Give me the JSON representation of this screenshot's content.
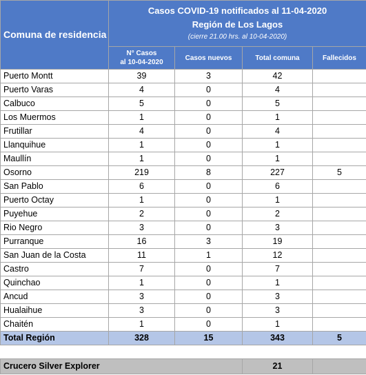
{
  "header": {
    "title": "Casos COVID-19 notificados al 11-04-2020",
    "region": "Región de Los Lagos",
    "subtitle": "(cierre 21.00 hrs. al 10-04-2020)",
    "first_column": "Comuna de residencia",
    "columns": [
      {
        "label": "N° Casos",
        "note": "al 10-04-2020"
      },
      {
        "label": "Casos nuevos"
      },
      {
        "label": "Total comuna"
      },
      {
        "label": "Fallecidos"
      }
    ]
  },
  "table": {
    "rows": [
      [
        "Puerto Montt",
        39,
        3,
        42,
        null
      ],
      [
        "Puerto Varas",
        4,
        0,
        4,
        null
      ],
      [
        "Calbuco",
        5,
        0,
        5,
        null
      ],
      [
        "Los Muermos",
        1,
        0,
        1,
        null
      ],
      [
        "Frutillar",
        4,
        0,
        4,
        null
      ],
      [
        "Llanquihue",
        1,
        0,
        1,
        null
      ],
      [
        "Maullín",
        1,
        0,
        1,
        null
      ],
      [
        "Osorno",
        219,
        8,
        227,
        5
      ],
      [
        "San Pablo",
        6,
        0,
        6,
        null
      ],
      [
        "Puerto Octay",
        1,
        0,
        1,
        null
      ],
      [
        "Puyehue",
        2,
        0,
        2,
        null
      ],
      [
        "Rio Negro",
        3,
        0,
        3,
        null
      ],
      [
        "Purranque",
        16,
        3,
        19,
        null
      ],
      [
        "San Juan de la Costa",
        11,
        1,
        12,
        null
      ],
      [
        "Castro",
        7,
        0,
        7,
        null
      ],
      [
        "Quinchao",
        1,
        0,
        1,
        null
      ],
      [
        "Ancud",
        3,
        0,
        3,
        null
      ],
      [
        "Hualaihue",
        3,
        0,
        3,
        null
      ],
      [
        "Chaitén",
        1,
        0,
        1,
        null
      ]
    ],
    "total": {
      "label": "Total Región",
      "values": [
        328,
        15,
        343,
        5
      ]
    },
    "cruise": {
      "label": "Crucero Silver Explorer",
      "total": 21
    }
  }
}
